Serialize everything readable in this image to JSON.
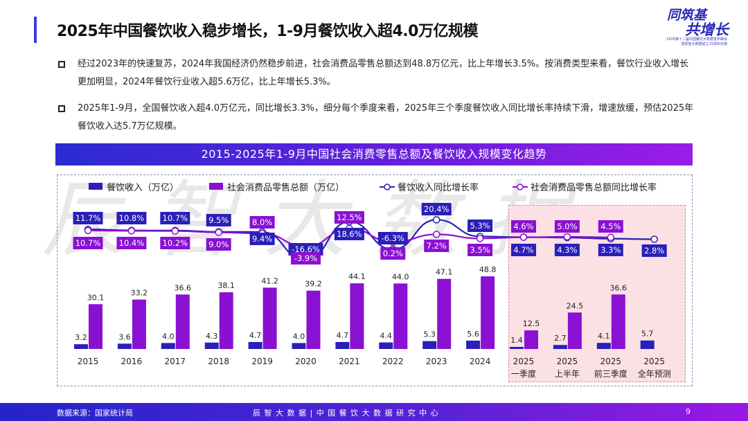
{
  "title": "2025年中国餐饮收入稳步增长，1-9月餐饮收入超4.0万亿规模",
  "logo": {
    "line1": "同筑基",
    "line2": "共增长",
    "line3": "2025第十二届中国餐饮大数据发布峰会",
    "line4": "暨辰智大数据成立15周年庆典"
  },
  "bullets": [
    "经过2023年的快速复苏，2024年我国经济仍然稳步前进，社会消费品零售总额达到48.8万亿元，比上年增长3.5%。按消费类型来看，餐饮行业收入增长更加明显，2024年餐饮行业收入超5.6万亿，比上年增长5.3%。",
    "2025年1-9月，全国餐饮收入超4.0万亿元，同比增长3.3%，细分每个季度来看，2025年三个季度餐饮收入同比增长率持续下滑，增速放缓，预估2025年餐饮收入达5.7万亿规模。"
  ],
  "watermark": "辰智大数据",
  "footer": {
    "source": "数据来源：国家统计局",
    "center": "辰 智 大 数 据  |  中 国 餐 饮 大 数 据 研 究 中 心",
    "page": "9"
  },
  "chart_data": {
    "type": "bar+line",
    "title": "2015-2025年1-9月中国社会消费零售总额及餐饮收入规模变化趋势",
    "categories": [
      [
        "2015"
      ],
      [
        "2016"
      ],
      [
        "2017"
      ],
      [
        "2018"
      ],
      [
        "2019"
      ],
      [
        "2020"
      ],
      [
        "2021"
      ],
      [
        "2022"
      ],
      [
        "2023"
      ],
      [
        "2024"
      ],
      [
        "2025",
        "一季度"
      ],
      [
        "2025",
        "上半年"
      ],
      [
        "2025",
        "前三季度"
      ],
      [
        "2025",
        "全年预测"
      ]
    ],
    "legend_position": "top",
    "grid": false,
    "highlighted_categories": [
      "2025 一季度",
      "2025 上半年",
      "2025 前三季度",
      "2025 全年预测"
    ],
    "series": [
      {
        "name": "餐饮收入（万亿）",
        "type": "bar",
        "color": "#2a1fb8",
        "values": [
          3.2,
          3.6,
          4.0,
          4.3,
          4.7,
          4.0,
          4.7,
          4.4,
          5.3,
          5.6,
          1.4,
          2.7,
          4.1,
          5.7
        ]
      },
      {
        "name": "社会消费品零售总额（万亿）",
        "type": "bar",
        "color": "#8a10d2",
        "values": [
          30.1,
          33.2,
          36.6,
          38.1,
          41.2,
          39.2,
          44.1,
          44.0,
          47.1,
          48.8,
          12.5,
          24.5,
          36.6,
          null
        ]
      },
      {
        "name": "餐饮收入同比增长率",
        "type": "line",
        "unit": "%",
        "color": "#2a1fb8",
        "values": [
          11.7,
          10.8,
          10.7,
          9.5,
          9.4,
          -16.6,
          18.6,
          -6.3,
          20.4,
          5.3,
          4.7,
          4.3,
          3.3,
          2.8
        ]
      },
      {
        "name": "社会消费品零售总额同比增长率",
        "type": "line",
        "unit": "%",
        "color": "#8a10d2",
        "values": [
          10.7,
          10.4,
          10.2,
          9.0,
          8.0,
          -3.9,
          12.5,
          0.2,
          7.2,
          3.5,
          4.6,
          5.0,
          4.5,
          null
        ]
      }
    ]
  }
}
